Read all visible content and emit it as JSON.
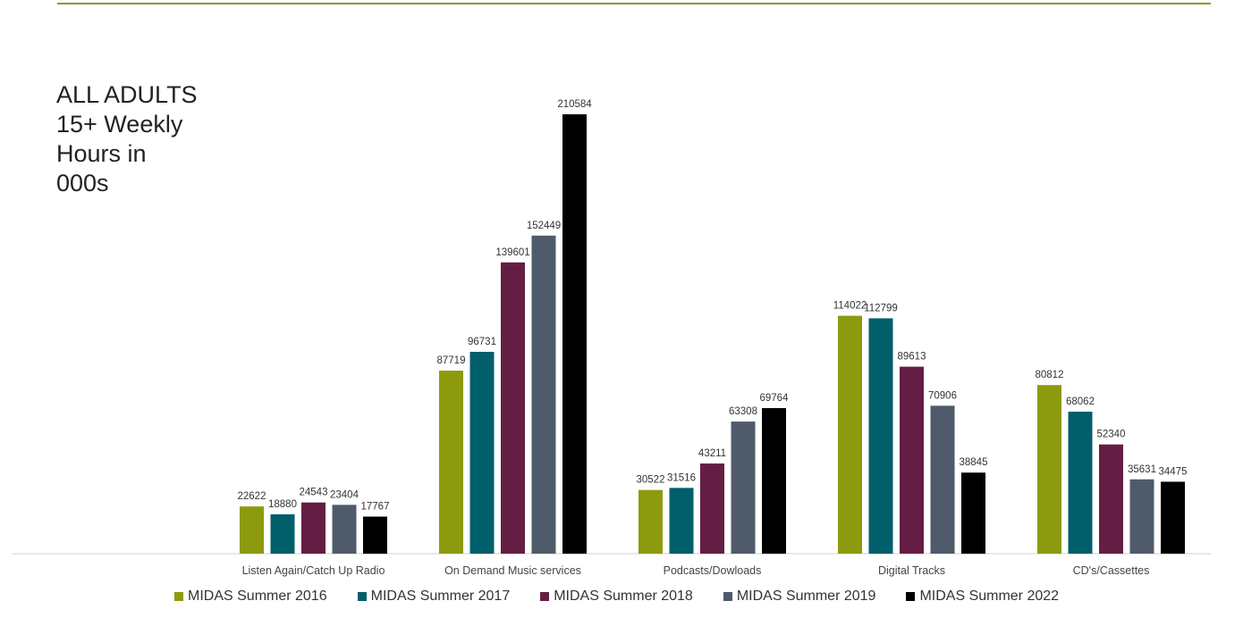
{
  "chart_data": {
    "type": "bar",
    "title": "ALL ADULTS\n15+ Weekly\nHours in\n000s",
    "xlabel": "",
    "ylabel": "",
    "categories": [
      "Listen Again/Catch Up Radio",
      "On Demand Music services",
      "Podcasts/Dowloads",
      "Digital Tracks",
      "CD's/Cassettes"
    ],
    "series": [
      {
        "name": "MIDAS Summer 2016",
        "color": "#8c9a0e",
        "values": [
          22622,
          87719,
          30522,
          114022,
          80812
        ]
      },
      {
        "name": "MIDAS Summer 2017",
        "color": "#005f6b",
        "values": [
          18880,
          96731,
          31516,
          112799,
          68062
        ]
      },
      {
        "name": "MIDAS Summer 2018",
        "color": "#651e43",
        "values": [
          24543,
          139601,
          43211,
          89613,
          52340
        ]
      },
      {
        "name": "MIDAS Summer 2019",
        "color": "#4f5b6b",
        "values": [
          23404,
          152449,
          63308,
          70906,
          35631
        ]
      },
      {
        "name": "MIDAS Summer 2022",
        "color": "#000000",
        "values": [
          17767,
          210584,
          69764,
          38845,
          34475
        ]
      }
    ],
    "ylim": [
      0,
      210584
    ],
    "grid": false,
    "legend_position": "bottom"
  }
}
